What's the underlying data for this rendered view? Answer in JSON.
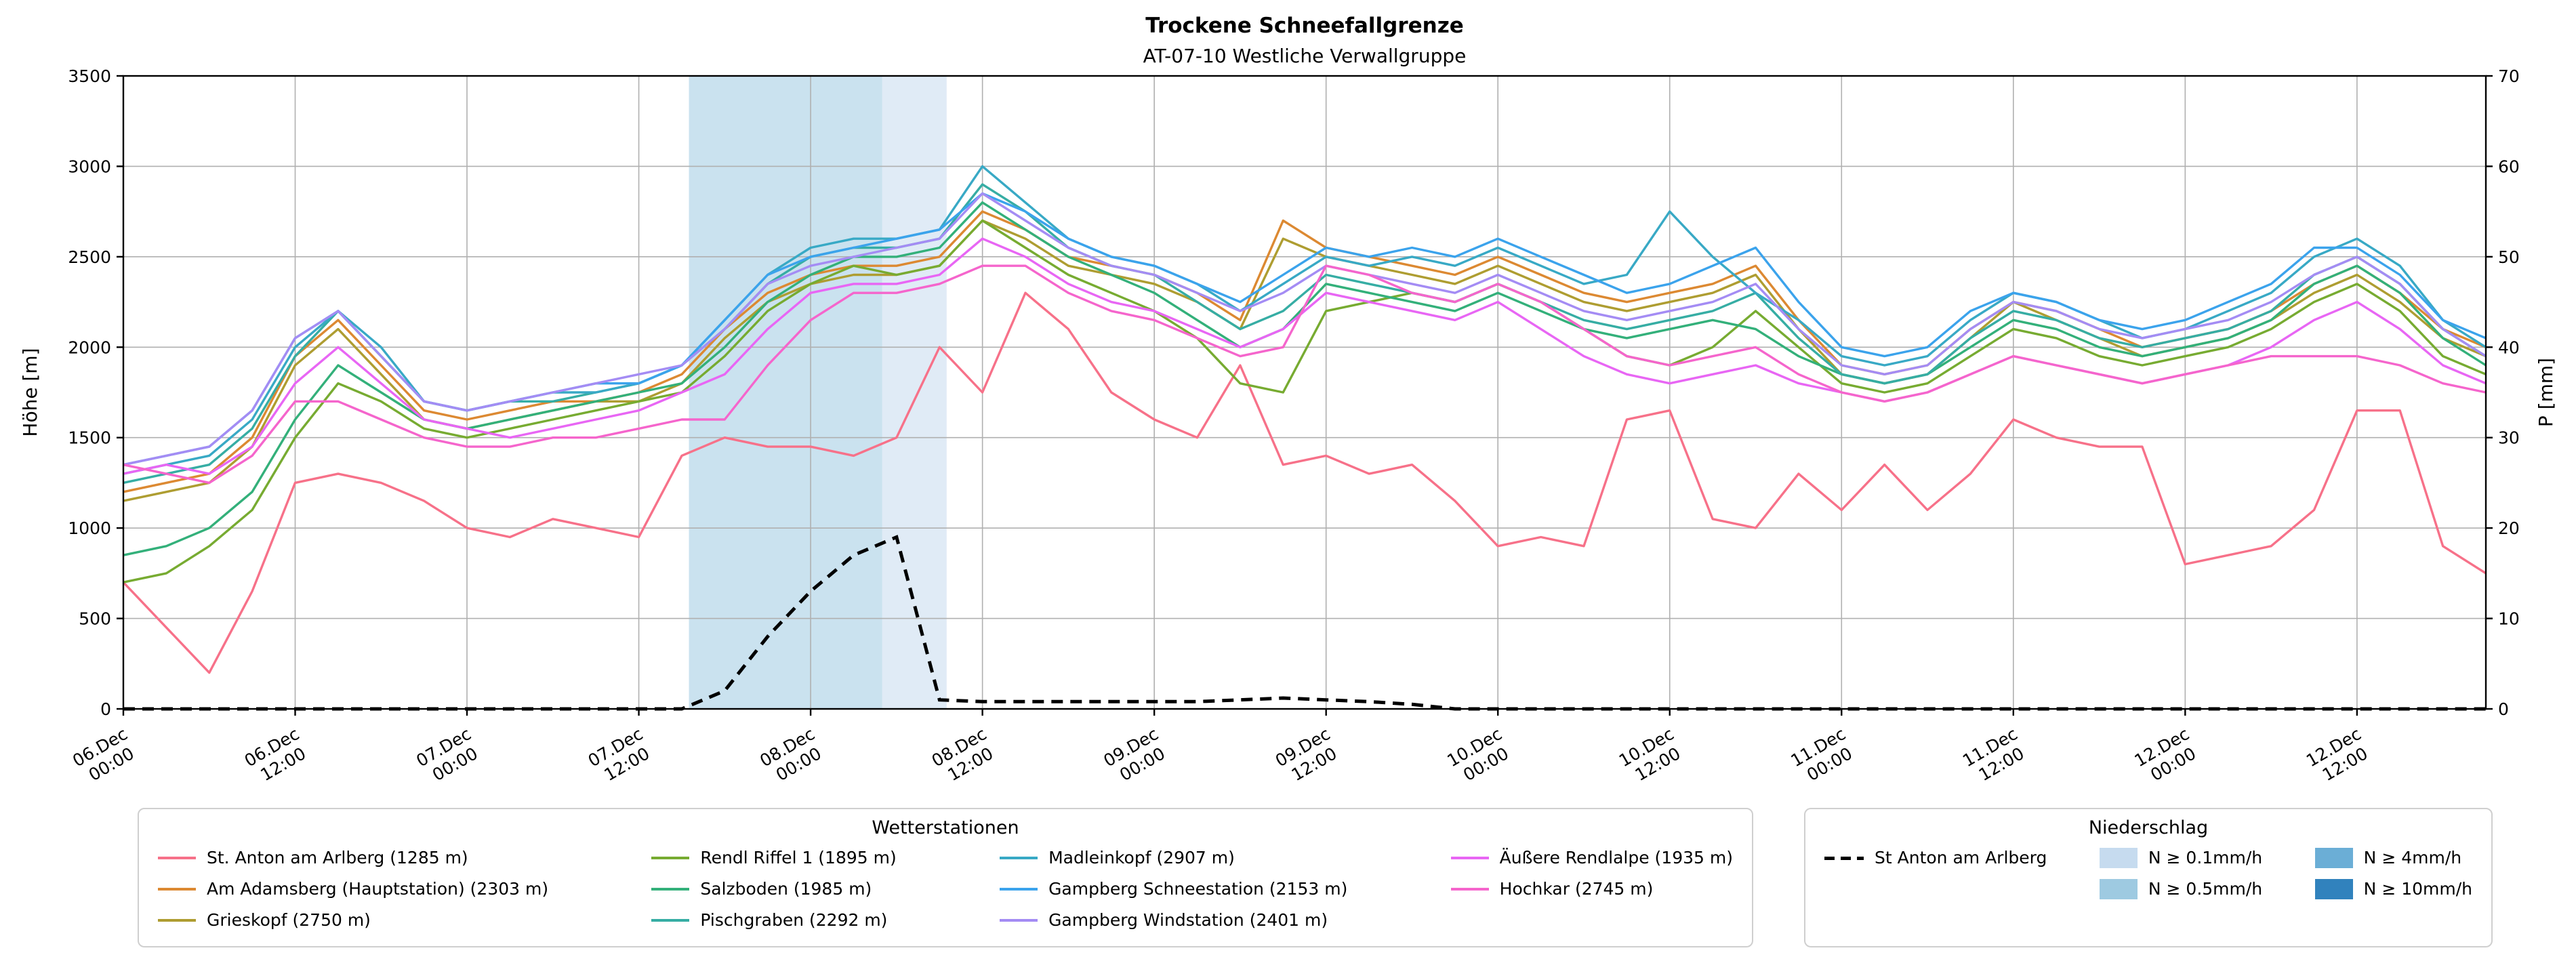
{
  "chart_data": {
    "type": "line",
    "title": "Trockene Schneefallgrenze",
    "subtitle": "AT-07-10 Westliche Verwallgruppe",
    "ylabel_left": "Höhe [m]",
    "ylabel_right": "P [mm]",
    "ylim_left": [
      0,
      3500
    ],
    "ylim_right": [
      0,
      70
    ],
    "yticks_left": [
      0,
      500,
      1000,
      1500,
      2000,
      2500,
      3000,
      3500
    ],
    "yticks_right": [
      0,
      10,
      20,
      30,
      40,
      50,
      60,
      70
    ],
    "xlim": [
      0,
      165
    ],
    "grid": true,
    "xticks": [
      {
        "h": 0,
        "line1": "06.Dec",
        "line2": "00:00"
      },
      {
        "h": 12,
        "line1": "06.Dec",
        "line2": "12:00"
      },
      {
        "h": 24,
        "line1": "07.Dec",
        "line2": "00:00"
      },
      {
        "h": 36,
        "line1": "07.Dec",
        "line2": "12:00"
      },
      {
        "h": 48,
        "line1": "08.Dec",
        "line2": "00:00"
      },
      {
        "h": 60,
        "line1": "08.Dec",
        "line2": "12:00"
      },
      {
        "h": 72,
        "line1": "09.Dec",
        "line2": "00:00"
      },
      {
        "h": 84,
        "line1": "09.Dec",
        "line2": "12:00"
      },
      {
        "h": 96,
        "line1": "10.Dec",
        "line2": "00:00"
      },
      {
        "h": 108,
        "line1": "10.Dec",
        "line2": "12:00"
      },
      {
        "h": 120,
        "line1": "11.Dec",
        "line2": "00:00"
      },
      {
        "h": 132,
        "line1": "11.Dec",
        "line2": "12:00"
      },
      {
        "h": 144,
        "line1": "12.Dec",
        "line2": "00:00"
      },
      {
        "h": 156,
        "line1": "12.Dec",
        "line2": "12:00"
      }
    ],
    "x_hours": [
      0,
      3,
      6,
      9,
      12,
      15,
      18,
      21,
      24,
      27,
      30,
      33,
      36,
      39,
      42,
      45,
      48,
      51,
      54,
      57,
      60,
      63,
      66,
      69,
      72,
      75,
      78,
      81,
      84,
      87,
      90,
      93,
      96,
      99,
      102,
      105,
      108,
      111,
      114,
      117,
      120,
      123,
      126,
      129,
      132,
      135,
      138,
      141,
      144,
      147,
      150,
      153,
      156,
      159,
      162,
      165
    ],
    "stations": [
      {
        "name": "St. Anton am Arlberg (1285 m)",
        "color": "#f77189",
        "values": [
          700,
          450,
          200,
          650,
          1250,
          1300,
          1250,
          1150,
          1000,
          950,
          1050,
          1000,
          950,
          1400,
          1500,
          1450,
          1450,
          1400,
          1500,
          2000,
          1750,
          2300,
          2100,
          1750,
          1600,
          1500,
          1900,
          1350,
          1400,
          1300,
          1350,
          1150,
          900,
          950,
          900,
          1600,
          1650,
          1050,
          1000,
          1300,
          1100,
          1350,
          1100,
          1300,
          1600,
          1500,
          1450,
          1450,
          800,
          850,
          900,
          1100,
          1650,
          1650,
          900,
          750
        ]
      },
      {
        "name": "Am Adamsberg (Hauptstation) (2303 m)",
        "color": "#dc8932",
        "values": [
          1200,
          1250,
          1300,
          1500,
          1950,
          2150,
          1900,
          1650,
          1600,
          1650,
          1700,
          1700,
          1750,
          1850,
          2100,
          2300,
          2400,
          2450,
          2450,
          2500,
          2750,
          2650,
          2500,
          2450,
          2400,
          2300,
          2150,
          2700,
          2550,
          2500,
          2450,
          2400,
          2500,
          2400,
          2300,
          2250,
          2300,
          2350,
          2450,
          2150,
          1900,
          1850,
          1900,
          2100,
          2250,
          2200,
          2100,
          2000,
          2050,
          2100,
          2200,
          2350,
          2450,
          2300,
          2100,
          2000
        ]
      },
      {
        "name": "Grieskopf (2750 m)",
        "color": "#ae9d31",
        "values": [
          1150,
          1200,
          1250,
          1450,
          1900,
          2100,
          1850,
          1600,
          1550,
          1600,
          1650,
          1700,
          1700,
          1800,
          2050,
          2250,
          2350,
          2400,
          2400,
          2450,
          2700,
          2600,
          2450,
          2400,
          2350,
          2250,
          2100,
          2600,
          2500,
          2450,
          2400,
          2350,
          2450,
          2350,
          2250,
          2200,
          2250,
          2300,
          2400,
          2100,
          1850,
          1800,
          1850,
          2050,
          2250,
          2150,
          2050,
          1950,
          2000,
          2050,
          2150,
          2300,
          2400,
          2250,
          2050,
          1950
        ]
      },
      {
        "name": "Rendl Riffel 1 (1895 m)",
        "color": "#77ab31",
        "values": [
          700,
          750,
          900,
          1100,
          1500,
          1800,
          1700,
          1550,
          1500,
          1550,
          1600,
          1650,
          1700,
          1750,
          1950,
          2200,
          2350,
          2450,
          2400,
          2450,
          2700,
          2550,
          2400,
          2300,
          2200,
          2050,
          1800,
          1750,
          2200,
          2250,
          2300,
          2250,
          2350,
          2250,
          2100,
          1950,
          1900,
          2000,
          2200,
          2000,
          1800,
          1750,
          1800,
          1950,
          2100,
          2050,
          1950,
          1900,
          1950,
          2000,
          2100,
          2250,
          2350,
          2200,
          1950,
          1850
        ]
      },
      {
        "name": "Salzboden (1985 m)",
        "color": "#33b07a",
        "values": [
          850,
          900,
          1000,
          1200,
          1600,
          1900,
          1750,
          1600,
          1550,
          1600,
          1650,
          1700,
          1750,
          1800,
          2000,
          2250,
          2400,
          2500,
          2500,
          2550,
          2800,
          2650,
          2500,
          2400,
          2300,
          2150,
          2000,
          2100,
          2350,
          2300,
          2250,
          2200,
          2300,
          2200,
          2100,
          2050,
          2100,
          2150,
          2100,
          1950,
          1850,
          1800,
          1850,
          2000,
          2150,
          2100,
          2000,
          1950,
          2000,
          2050,
          2150,
          2350,
          2450,
          2300,
          2050,
          1900
        ]
      },
      {
        "name": "Pischgraben (2292 m)",
        "color": "#36ada4",
        "values": [
          1250,
          1300,
          1350,
          1550,
          1950,
          2200,
          1950,
          1700,
          1650,
          1700,
          1700,
          1750,
          1800,
          1900,
          2100,
          2350,
          2500,
          2550,
          2550,
          2600,
          2900,
          2750,
          2550,
          2450,
          2400,
          2250,
          2100,
          2200,
          2400,
          2350,
          2300,
          2250,
          2350,
          2250,
          2150,
          2100,
          2150,
          2200,
          2300,
          2050,
          1850,
          1800,
          1850,
          2050,
          2200,
          2150,
          2050,
          2000,
          2050,
          2100,
          2200,
          2400,
          2500,
          2350,
          2100,
          1950
        ]
      },
      {
        "name": "Madleinkopf (2907 m)",
        "color": "#38a9c5",
        "values": [
          1300,
          1350,
          1400,
          1600,
          2000,
          2200,
          2000,
          1700,
          1650,
          1700,
          1750,
          1750,
          1800,
          1900,
          2150,
          2400,
          2550,
          2600,
          2600,
          2650,
          3000,
          2800,
          2600,
          2500,
          2450,
          2350,
          2200,
          2350,
          2500,
          2450,
          2500,
          2450,
          2550,
          2450,
          2350,
          2400,
          2750,
          2500,
          2300,
          2150,
          1950,
          1900,
          1950,
          2150,
          2300,
          2250,
          2150,
          2050,
          2100,
          2200,
          2300,
          2500,
          2600,
          2450,
          2150,
          2000
        ]
      },
      {
        "name": "Gampberg Schneestation (2153 m)",
        "color": "#3ba3ec",
        "values": [
          1350,
          1400,
          1450,
          1650,
          2050,
          2200,
          1950,
          1700,
          1650,
          1700,
          1750,
          1800,
          1800,
          1900,
          2150,
          2400,
          2500,
          2550,
          2600,
          2650,
          2850,
          2750,
          2600,
          2500,
          2450,
          2350,
          2250,
          2400,
          2550,
          2500,
          2550,
          2500,
          2600,
          2500,
          2400,
          2300,
          2350,
          2450,
          2550,
          2250,
          2000,
          1950,
          2000,
          2200,
          2300,
          2250,
          2150,
          2100,
          2150,
          2250,
          2350,
          2550,
          2550,
          2400,
          2150,
          2050
        ]
      },
      {
        "name": "Gampberg Windstation (2401 m)",
        "color": "#a48cf4",
        "values": [
          1350,
          1400,
          1450,
          1650,
          2050,
          2200,
          1950,
          1700,
          1650,
          1700,
          1750,
          1800,
          1850,
          1900,
          2100,
          2350,
          2450,
          2500,
          2550,
          2600,
          2850,
          2700,
          2550,
          2450,
          2400,
          2300,
          2200,
          2300,
          2450,
          2400,
          2350,
          2300,
          2400,
          2300,
          2200,
          2150,
          2200,
          2250,
          2350,
          2100,
          1900,
          1850,
          1900,
          2100,
          2250,
          2200,
          2100,
          2050,
          2100,
          2150,
          2250,
          2400,
          2500,
          2350,
          2100,
          1950
        ]
      },
      {
        "name": "Äußere Rendlalpe (1935 m)",
        "color": "#e866f4",
        "values": [
          1300,
          1350,
          1300,
          1450,
          1800,
          2000,
          1800,
          1600,
          1550,
          1500,
          1550,
          1600,
          1650,
          1750,
          1850,
          2100,
          2300,
          2350,
          2350,
          2400,
          2600,
          2500,
          2350,
          2250,
          2200,
          2100,
          2000,
          2100,
          2300,
          2250,
          2200,
          2150,
          2250,
          2100,
          1950,
          1850,
          1800,
          1850,
          1900,
          1800,
          1750,
          1700,
          1750,
          1850,
          1950,
          1900,
          1850,
          1800,
          1850,
          1900,
          2000,
          2150,
          2250,
          2100,
          1900,
          1800
        ]
      },
      {
        "name": "Hochkar (2745 m)",
        "color": "#f565cc",
        "values": [
          1350,
          1300,
          1250,
          1400,
          1700,
          1700,
          1600,
          1500,
          1450,
          1450,
          1500,
          1500,
          1550,
          1600,
          1600,
          1900,
          2150,
          2300,
          2300,
          2350,
          2450,
          2450,
          2300,
          2200,
          2150,
          2050,
          1950,
          2000,
          2450,
          2400,
          2300,
          2250,
          2350,
          2250,
          2100,
          1950,
          1900,
          1950,
          2000,
          1850,
          1750,
          1700,
          1750,
          1850,
          1950,
          1900,
          1850,
          1800,
          1850,
          1900,
          1950,
          1950,
          1950,
          1900,
          1800,
          1750
        ]
      }
    ],
    "precip_line": {
      "name": "St Anton am Arlberg",
      "color": "#000000",
      "values": [
        0,
        0,
        0,
        0,
        0,
        0,
        0,
        0,
        0,
        0,
        0,
        0,
        0,
        0,
        2,
        8,
        13,
        17,
        19,
        1,
        0.8,
        0.8,
        0.8,
        0.8,
        0.8,
        0.8,
        1,
        1.2,
        1,
        0.8,
        0.5,
        0,
        0,
        0,
        0,
        0,
        0,
        0,
        0,
        0,
        0,
        0,
        0,
        0,
        0,
        0,
        0,
        0,
        0,
        0,
        0,
        0,
        0,
        0,
        0,
        0
      ]
    },
    "precip_bands": [
      {
        "label": "N ≥ 0.5mm/h",
        "from_h": 39.5,
        "to_h": 53,
        "color": "#9ecae1",
        "opacity": 0.55
      },
      {
        "label": "N ≥ 0.1mm/h",
        "from_h": 53,
        "to_h": 57.5,
        "color": "#c6dbef",
        "opacity": 0.55
      }
    ]
  },
  "legend_stations": {
    "title": "Wetterstationen"
  },
  "legend_precip": {
    "title": "Niederschlag",
    "line_item": {
      "label": "St Anton am Arlberg"
    },
    "patch_items": [
      {
        "label": "N ≥ 0.1mm/h",
        "color": "#c6dbef"
      },
      {
        "label": "N ≥ 0.5mm/h",
        "color": "#9ecae1"
      },
      {
        "label": "N ≥ 4mm/h",
        "color": "#6baed6"
      },
      {
        "label": "N ≥ 10mm/h",
        "color": "#3182bd"
      }
    ]
  }
}
